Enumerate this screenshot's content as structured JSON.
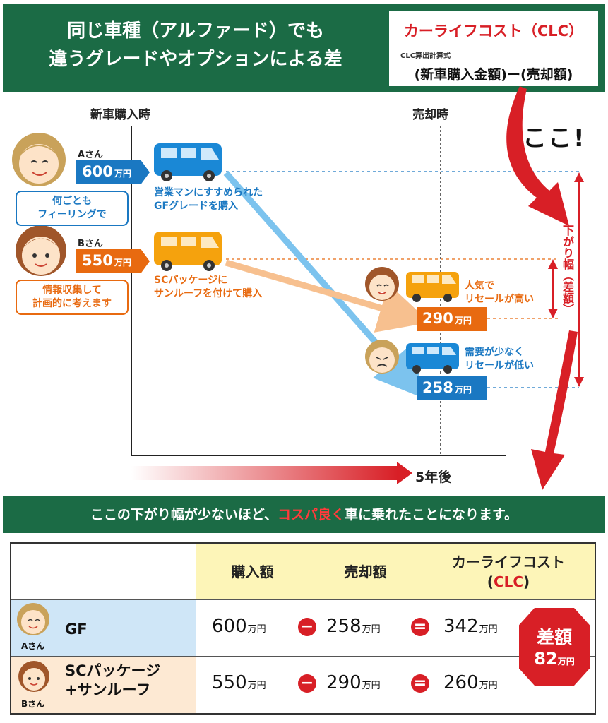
{
  "header": {
    "title_line1": "同じ車種（アルファード）でも",
    "title_line2": "違うグレードやオプションによる差"
  },
  "clc_box": {
    "title": "カーライフコスト（CLC）",
    "subtitle": "CLC算出計算式",
    "formula": "(新車購入金額)ー(売却額)"
  },
  "chart": {
    "left_heading": "新車購入時",
    "right_heading": "売却時",
    "callout": "ここ!",
    "drop_label": "下がり幅（差額）",
    "x_label": "5年後",
    "person_a": {
      "name": "Aさん",
      "price": "600",
      "unit": "万円",
      "bubble": "何ごとも\nフィーリングで",
      "note": "営業マンにすすめられた\nGFグレードを購入"
    },
    "person_b": {
      "name": "Bさん",
      "price": "550",
      "unit": "万円",
      "bubble": "情報収集して\n計画的に考えます",
      "note": "SCパッケージに\nサンルーフを付けて購入"
    },
    "sale_b": {
      "price": "290",
      "unit": "万円",
      "note": "人気で\nリセールが高い"
    },
    "sale_a": {
      "price": "258",
      "unit": "万円",
      "note": "需要が少なく\nリセールが低い"
    },
    "colors": {
      "blue": "#1a78c2",
      "orange": "#e86a10",
      "red": "#d81f26",
      "green": "#1b6b45"
    }
  },
  "message": {
    "before": "ここの下がり幅が少ないほど、",
    "highlight": "コスパ良く",
    "after": "車に乗れたことになります。"
  },
  "table": {
    "headers": {
      "purchase": "購入額",
      "sale": "売却額",
      "clc_line1": "カーライフコスト",
      "clc_open": "(",
      "clc_abbr": "CLC",
      "clc_close": ")"
    },
    "rows": [
      {
        "name": "GF",
        "person": "Aさん",
        "purchase": "600",
        "sale": "258",
        "clc": "342",
        "unit": "万円"
      },
      {
        "name": "SCパッケージ\n+サンルーフ",
        "person": "Bさん",
        "purchase": "550",
        "sale": "290",
        "clc": "260",
        "unit": "万円"
      }
    ],
    "minus_sign": "−",
    "equals_sign": "=",
    "diff": {
      "label": "差額",
      "value": "82",
      "unit": "万円"
    }
  }
}
